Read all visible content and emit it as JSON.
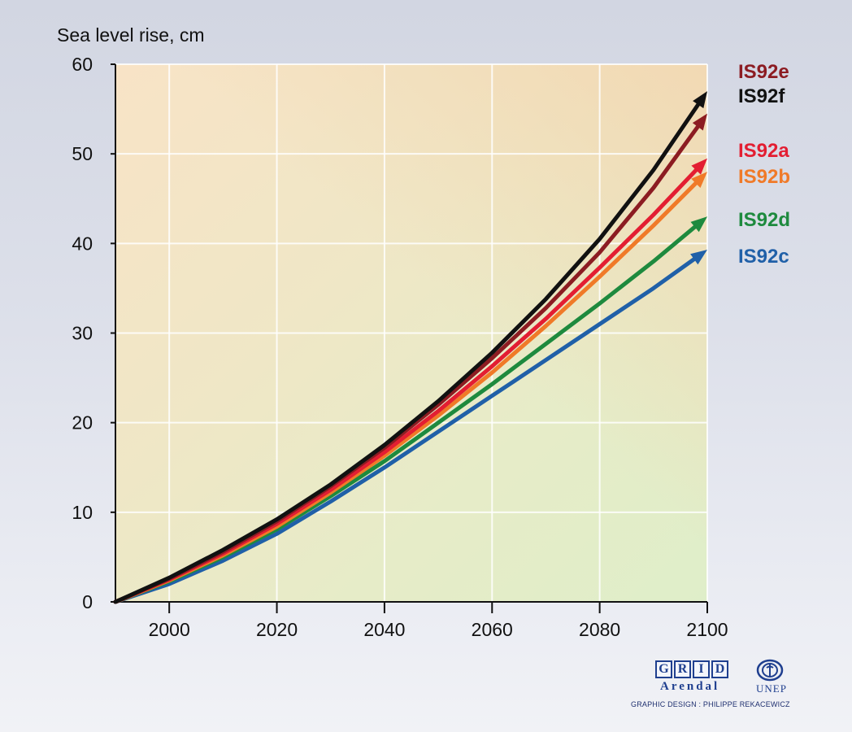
{
  "chart_data": {
    "type": "line",
    "ylabel": "Sea level rise, cm",
    "xlabel": "",
    "xlim": [
      1990,
      2100
    ],
    "ylim": [
      0,
      60
    ],
    "x_ticks": [
      2000,
      2020,
      2040,
      2060,
      2080,
      2100
    ],
    "y_ticks": [
      0,
      10,
      20,
      30,
      40,
      50,
      60
    ],
    "grid": true,
    "legend": "labels at line ends, right",
    "series": [
      {
        "name": "IS92c",
        "color": "#2060a8",
        "x": [
          1990,
          2000,
          2010,
          2020,
          2030,
          2040,
          2050,
          2060,
          2070,
          2080,
          2090,
          2100
        ],
        "y": [
          0,
          2,
          4.6,
          7.6,
          11.2,
          15.0,
          19.0,
          23.0,
          27.0,
          31.0,
          35.0,
          39.3
        ]
      },
      {
        "name": "IS92d",
        "color": "#1e8a3e",
        "x": [
          1990,
          2000,
          2010,
          2020,
          2030,
          2040,
          2050,
          2060,
          2070,
          2080,
          2090,
          2100
        ],
        "y": [
          0,
          2.3,
          5.0,
          8.1,
          11.8,
          15.7,
          20.0,
          24.3,
          28.8,
          33.3,
          38.0,
          43.0
        ]
      },
      {
        "name": "IS92b",
        "color": "#f07a28",
        "x": [
          1990,
          2000,
          2010,
          2020,
          2030,
          2040,
          2050,
          2060,
          2070,
          2080,
          2090,
          2100
        ],
        "y": [
          0,
          2.4,
          5.2,
          8.4,
          12.2,
          16.3,
          20.8,
          25.6,
          30.8,
          36.3,
          42.0,
          48.0
        ]
      },
      {
        "name": "IS92a",
        "color": "#e31e32",
        "x": [
          1990,
          2000,
          2010,
          2020,
          2030,
          2040,
          2050,
          2060,
          2070,
          2080,
          2090,
          2100
        ],
        "y": [
          0,
          2.5,
          5.4,
          8.7,
          12.5,
          16.7,
          21.3,
          26.3,
          31.6,
          37.3,
          43.2,
          49.5
        ]
      },
      {
        "name": "IS92e",
        "color": "#8c1c22",
        "x": [
          1990,
          2000,
          2010,
          2020,
          2030,
          2040,
          2050,
          2060,
          2070,
          2080,
          2090,
          2100
        ],
        "y": [
          0,
          2.6,
          5.6,
          9.0,
          12.9,
          17.2,
          22.0,
          27.2,
          32.8,
          39.0,
          46.2,
          54.5
        ]
      },
      {
        "name": "IS92f",
        "color": "#111111",
        "x": [
          1990,
          2000,
          2010,
          2020,
          2030,
          2040,
          2050,
          2060,
          2070,
          2080,
          2090,
          2100
        ],
        "y": [
          0,
          2.7,
          5.8,
          9.2,
          13.1,
          17.5,
          22.4,
          27.8,
          33.8,
          40.5,
          48.2,
          57.0
        ]
      }
    ],
    "label_order": [
      "IS92e",
      "IS92f",
      "IS92a",
      "IS92b",
      "IS92d",
      "IS92c"
    ]
  },
  "logo": {
    "grid_letters": [
      "G",
      "R",
      "I",
      "D"
    ],
    "arendal": "Arendal",
    "unep": "UNEP",
    "credit": "GRAPHIC DESIGN : PHILIPPE REKACEWICZ"
  }
}
